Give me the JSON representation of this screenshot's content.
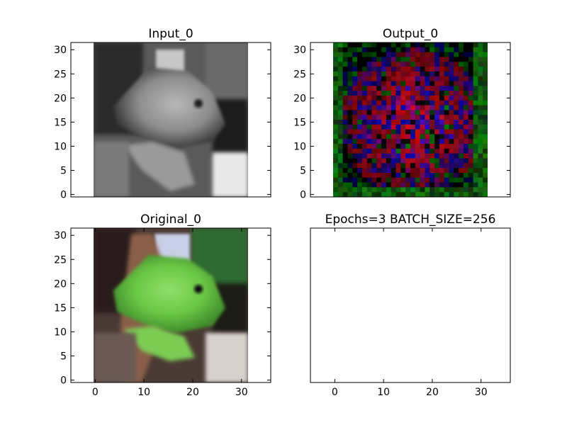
{
  "figure": {
    "background": "#ffffff"
  },
  "chart_data": [
    {
      "type": "image",
      "title": "Input_0",
      "xlim": [
        -5,
        36
      ],
      "ylim": [
        31.5,
        -0.5
      ],
      "xticks": [],
      "yticks": [
        0,
        5,
        10,
        15,
        20,
        25,
        30
      ],
      "image": "grayscale photo of a frog",
      "extent": [
        -0.5,
        31.5,
        31.5,
        -0.5
      ]
    },
    {
      "type": "image",
      "title": "Output_0",
      "xlim": [
        -5,
        36
      ],
      "ylim": [
        31.5,
        -0.5
      ],
      "xticks": [],
      "yticks": [
        0,
        5,
        10,
        15,
        20,
        25,
        30
      ],
      "image": "noisy red, blue and green reconstruction",
      "extent": [
        -0.5,
        31.5,
        31.5,
        -0.5
      ]
    },
    {
      "type": "image",
      "title": "Original_0",
      "xlim": [
        -5,
        36
      ],
      "ylim": [
        31.5,
        -0.5
      ],
      "xticks": [
        0,
        10,
        20,
        30
      ],
      "yticks": [
        0,
        5,
        10,
        15,
        20,
        25,
        30
      ],
      "image": "color photo of a green frog",
      "extent": [
        -0.5,
        31.5,
        31.5,
        -0.5
      ]
    },
    {
      "type": "empty",
      "title": "Epochs=3 BATCH_SIZE=256",
      "xlim": [
        -5,
        36
      ],
      "ylim": [
        31.5,
        -0.5
      ],
      "xticks": [
        0,
        10,
        20,
        30
      ],
      "yticks": []
    }
  ]
}
